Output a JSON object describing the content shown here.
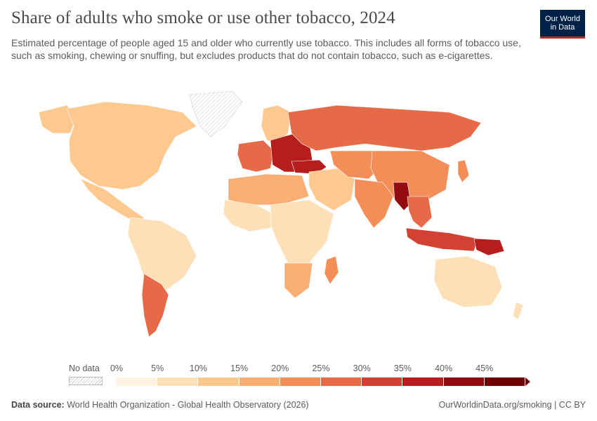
{
  "header": {
    "title": "Share of adults who smoke or use other tobacco, 2024",
    "subtitle": "Estimated percentage of people aged 15 and older who currently use tobacco. This includes all forms of tobacco use, such as smoking, chewing or snuffing, but excludes products that do not contain tobacco, such as e-cigarettes."
  },
  "logo": {
    "line1": "Our World",
    "line2": "in Data"
  },
  "legend": {
    "no_data_label": "No data",
    "ticks": [
      "0%",
      "5%",
      "10%",
      "15%",
      "20%",
      "25%",
      "30%",
      "35%",
      "40%",
      "45%"
    ],
    "colors": [
      "#fff2e1",
      "#fee0b8",
      "#fdc98e",
      "#f9ae73",
      "#f48e59",
      "#e76a48",
      "#d24234",
      "#b61e1e",
      "#930a10",
      "#6e0000"
    ]
  },
  "map_regions": [
    {
      "name": "north-america",
      "bin": 2
    },
    {
      "name": "greenland",
      "bin": -1
    },
    {
      "name": "alaska",
      "bin": 2
    },
    {
      "name": "mexico-central-america",
      "bin": 2
    },
    {
      "name": "south-america-north",
      "bin": 1
    },
    {
      "name": "chile-argentina",
      "bin": 5
    },
    {
      "name": "western-europe",
      "bin": 5
    },
    {
      "name": "eastern-europe",
      "bin": 7
    },
    {
      "name": "russia",
      "bin": 5
    },
    {
      "name": "scandinavia",
      "bin": 2
    },
    {
      "name": "north-africa",
      "bin": 3
    },
    {
      "name": "west-africa",
      "bin": 1
    },
    {
      "name": "central-east-africa",
      "bin": 1
    },
    {
      "name": "southern-africa",
      "bin": 3
    },
    {
      "name": "madagascar",
      "bin": 4
    },
    {
      "name": "middle-east",
      "bin": 2
    },
    {
      "name": "turkey",
      "bin": 7
    },
    {
      "name": "central-asia",
      "bin": 4
    },
    {
      "name": "china",
      "bin": 4
    },
    {
      "name": "india",
      "bin": 4
    },
    {
      "name": "myanmar",
      "bin": 8
    },
    {
      "name": "southeast-asia",
      "bin": 5
    },
    {
      "name": "indonesia",
      "bin": 6
    },
    {
      "name": "papua-new-guinea",
      "bin": 7
    },
    {
      "name": "australia",
      "bin": 1
    },
    {
      "name": "new-zealand",
      "bin": 1
    },
    {
      "name": "japan",
      "bin": 4
    }
  ],
  "footer": {
    "source_label": "Data source:",
    "source_text": "World Health Organization - Global Health Observatory (2026)",
    "url": "OurWorldinData.org/smoking",
    "separator": " | ",
    "license": "CC BY"
  }
}
